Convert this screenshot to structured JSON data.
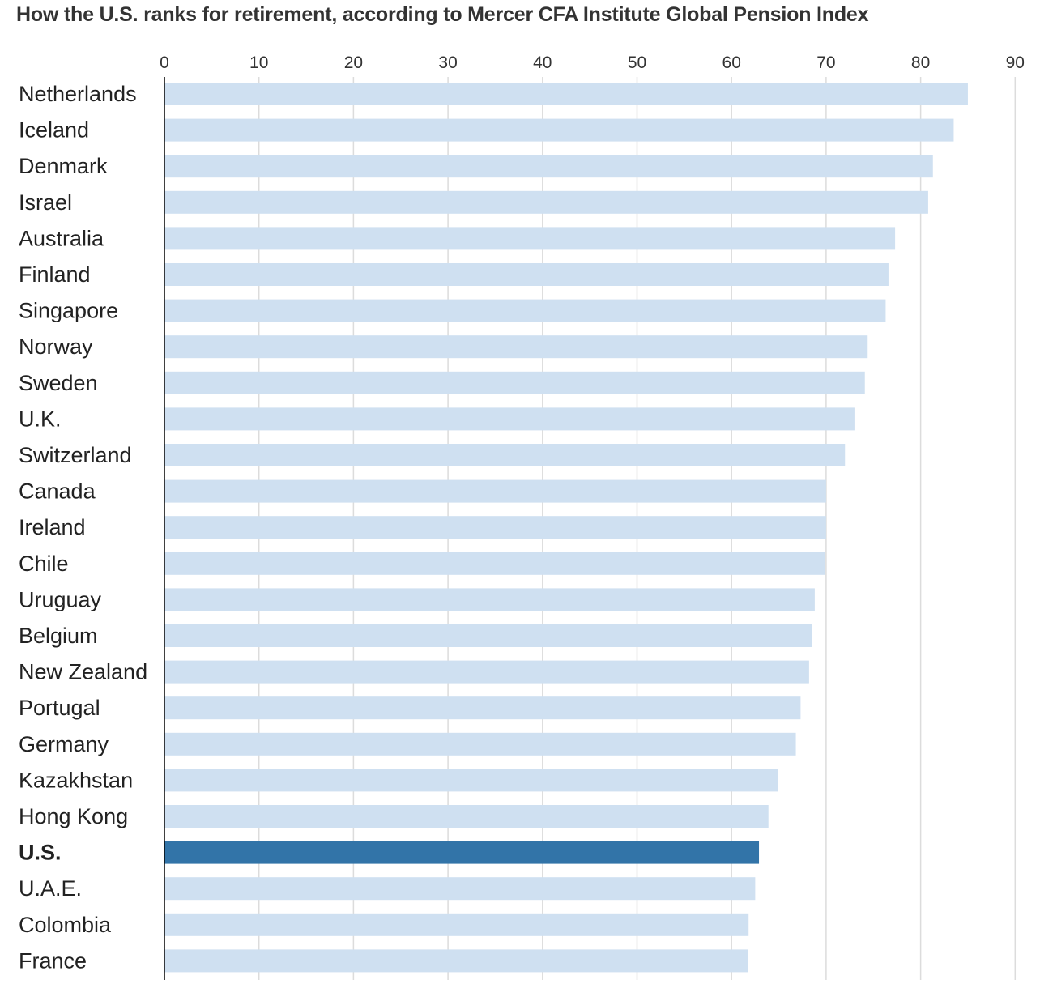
{
  "chart_data": {
    "type": "bar",
    "orientation": "horizontal",
    "title": "How the U.S. ranks for retirement, according to Mercer CFA Institute Global Pension Index",
    "xlim": [
      0,
      90
    ],
    "xticks": [
      "0",
      "10",
      "20",
      "30",
      "40",
      "50",
      "60",
      "70",
      "80",
      "90"
    ],
    "grid": true,
    "categories": [
      "Netherlands",
      "Iceland",
      "Denmark",
      "Israel",
      "Australia",
      "Finland",
      "Singapore",
      "Norway",
      "Sweden",
      "U.K.",
      "Switzerland",
      "Canada",
      "Ireland",
      "Chile",
      "Uruguay",
      "Belgium",
      "New Zealand",
      "Portugal",
      "Germany",
      "Kazakhstan",
      "Hong Kong",
      "U.S.",
      "U.A.E.",
      "Colombia",
      "France"
    ],
    "values": [
      85.0,
      83.5,
      81.3,
      80.8,
      77.3,
      76.6,
      76.3,
      74.4,
      74.1,
      73.0,
      72.0,
      70.0,
      70.0,
      69.9,
      68.8,
      68.5,
      68.2,
      67.3,
      66.8,
      64.9,
      63.9,
      62.9,
      62.5,
      61.8,
      61.7
    ],
    "highlight": "U.S.",
    "colors": {
      "bar": "#cfe0f1",
      "highlight": "#3274a8",
      "grid": "#dcdcdc",
      "axis": "#000000"
    }
  }
}
